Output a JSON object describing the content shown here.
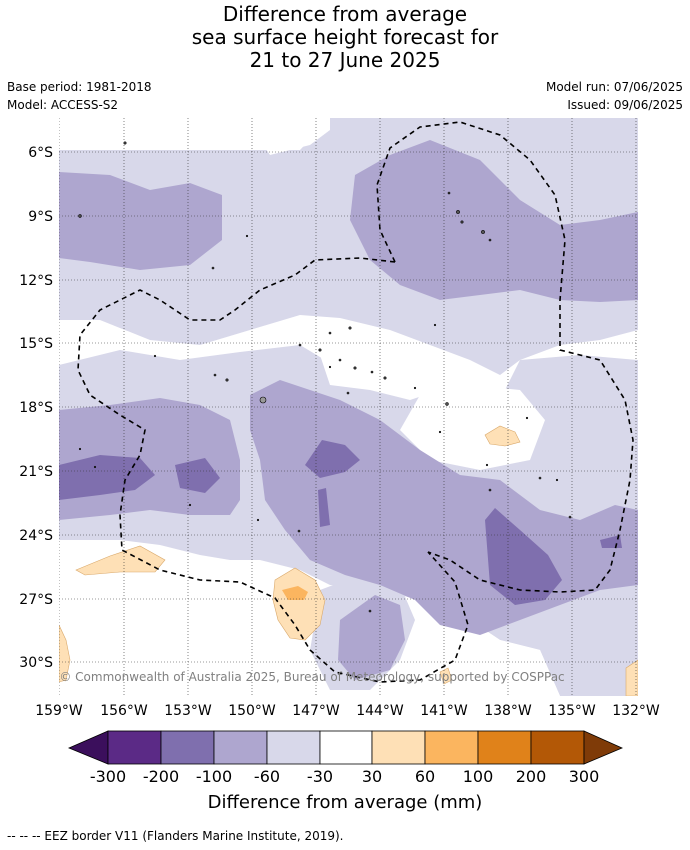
{
  "header": {
    "title_line1": "Difference from average",
    "title_line2": "sea surface height forecast for",
    "title_line3": "21 to 27 June 2025",
    "base_period": "Base period: 1981-2018",
    "model": "Model: ACCESS-S2",
    "model_run": "Model run: 07/06/2025",
    "issued": "Issued: 09/06/2025"
  },
  "map": {
    "lat_labels": [
      "6°S",
      "9°S",
      "12°S",
      "15°S",
      "18°S",
      "21°S",
      "24°S",
      "27°S",
      "30°S"
    ],
    "lon_labels": [
      "159°W",
      "156°W",
      "153°W",
      "150°W",
      "147°W",
      "144°W",
      "141°W",
      "138°W",
      "135°W",
      "132°W"
    ],
    "copyright": "© Commonwealth of Australia 2025, Bureau of Meteorology, supported by COSPPac"
  },
  "colorbar": {
    "title": "Difference from average (mm)",
    "tick_labels": [
      "-300",
      "-200",
      "-100",
      "-60",
      "-30",
      "30",
      "60",
      "100",
      "200",
      "300"
    ],
    "colors": [
      "#3b0f5c",
      "#5b2a86",
      "#7f6fae",
      "#aea6cf",
      "#d8d8ea",
      "#ffffff",
      "#fee0b6",
      "#fbb55f",
      "#e0821a",
      "#b35806",
      "#7f3b08"
    ]
  },
  "legend": {
    "eez_text": "-- -- -- EEZ border V11 (Flanders Marine Institute, 2019)."
  }
}
